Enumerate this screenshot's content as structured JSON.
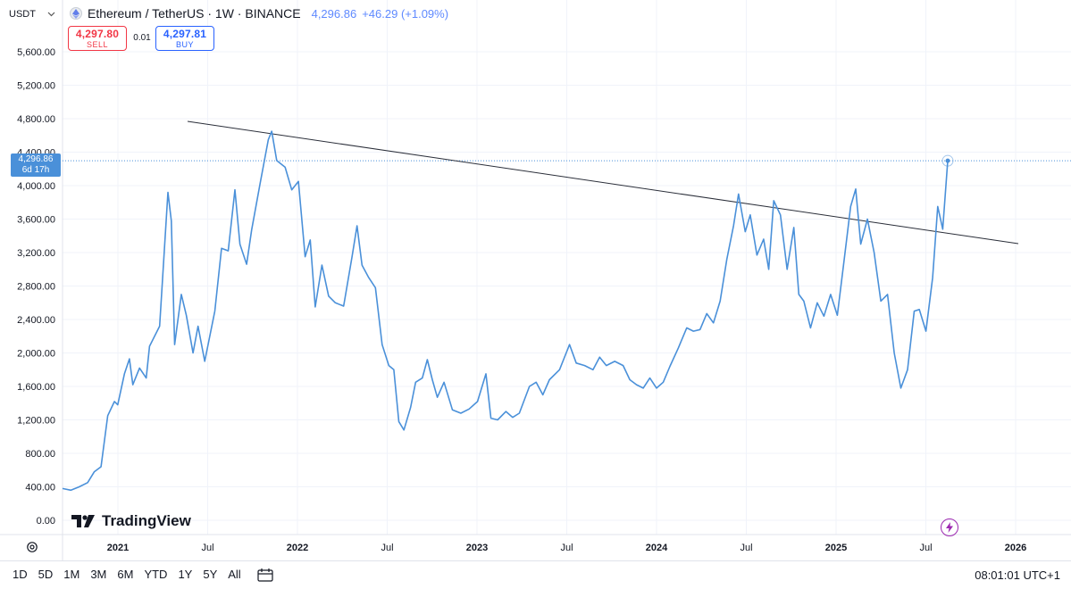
{
  "header": {
    "currency": "USDT",
    "title": "Ethereum / TetherUS · 1W · BINANCE",
    "price": "4,296.86",
    "change": "+46.29 (+1.09%)"
  },
  "trade": {
    "sell_price": "4,297.80",
    "sell_label": "SELL",
    "spread": "0.01",
    "buy_price": "4,297.81",
    "buy_label": "BUY"
  },
  "price_tag": {
    "price": "4,296.86",
    "countdown": "6d 17h"
  },
  "watermark": "TradingView",
  "toolbar": {
    "ranges": [
      "1D",
      "5D",
      "1M",
      "3M",
      "6M",
      "YTD",
      "1Y",
      "5Y",
      "All"
    ],
    "clock": "08:01:01 UTC+1"
  },
  "colors": {
    "line": "#4a90d9",
    "trendline": "#2a2e39",
    "grid": "#f0f3fa",
    "sell": "#f23645",
    "buy": "#2962ff",
    "event": "#9c27b0"
  },
  "icons": [
    "chevron-down-icon",
    "ethereum-logo-icon",
    "gear-icon",
    "date-range-icon",
    "lightning-icon",
    "tradingview-logo-icon"
  ],
  "chart_data": {
    "type": "line",
    "title": "Ethereum / TetherUS · 1W · BINANCE",
    "y_axis": {
      "position": "left",
      "ylim": [
        -100,
        6000
      ],
      "ticks": [
        0,
        400,
        800,
        1200,
        1600,
        2000,
        2400,
        2800,
        3200,
        3600,
        4000,
        4400,
        4800,
        5200,
        5600
      ],
      "tick_labels": [
        "0.00",
        "400.00",
        "800.00",
        "1,200.00",
        "1,600.00",
        "2,000.00",
        "2,400.00",
        "2,800.00",
        "3,200.00",
        "3,600.00",
        "4,000.00",
        "4,400.00",
        "4,800.00",
        "5,200.00",
        "5,600.00"
      ]
    },
    "x_axis": {
      "xlim": [
        2020.87,
        2026.08
      ],
      "ticks": [
        {
          "x": 2021.0,
          "label": "2021",
          "bold": true
        },
        {
          "x": 2021.5,
          "label": "Jul",
          "bold": false
        },
        {
          "x": 2022.0,
          "label": "2022",
          "bold": true
        },
        {
          "x": 2022.5,
          "label": "Jul",
          "bold": false
        },
        {
          "x": 2023.0,
          "label": "2023",
          "bold": true
        },
        {
          "x": 2023.5,
          "label": "Jul",
          "bold": false
        },
        {
          "x": 2024.0,
          "label": "2024",
          "bold": true
        },
        {
          "x": 2024.5,
          "label": "Jul",
          "bold": false
        },
        {
          "x": 2025.0,
          "label": "2025",
          "bold": true
        },
        {
          "x": 2025.5,
          "label": "Jul",
          "bold": false
        },
        {
          "x": 2026.0,
          "label": "2026",
          "bold": true
        }
      ]
    },
    "grid": true,
    "series": [
      {
        "points": [
          [
            2020.87,
            380
          ],
          [
            2020.92,
            360
          ],
          [
            2020.97,
            400
          ],
          [
            2021.02,
            450
          ],
          [
            2021.06,
            580
          ],
          [
            2021.1,
            640
          ],
          [
            2021.14,
            1250
          ],
          [
            2021.18,
            1420
          ],
          [
            2021.2,
            1380
          ],
          [
            2021.24,
            1750
          ],
          [
            2021.27,
            1930
          ],
          [
            2021.29,
            1620
          ],
          [
            2021.33,
            1820
          ],
          [
            2021.37,
            1700
          ],
          [
            2021.39,
            2080
          ],
          [
            2021.45,
            2320
          ],
          [
            2021.5,
            3920
          ],
          [
            2021.52,
            3580
          ],
          [
            2021.54,
            2100
          ],
          [
            2021.58,
            2700
          ],
          [
            2021.61,
            2450
          ],
          [
            2021.65,
            2000
          ],
          [
            2021.68,
            2320
          ],
          [
            2021.72,
            1900
          ],
          [
            2021.78,
            2500
          ],
          [
            2021.82,
            3250
          ],
          [
            2021.86,
            3220
          ],
          [
            2021.9,
            3950
          ],
          [
            2021.93,
            3300
          ],
          [
            2021.97,
            3060
          ],
          [
            2022.0,
            3470
          ],
          [
            2022.05,
            4020
          ],
          [
            2022.1,
            4550
          ],
          [
            2022.12,
            4650
          ],
          [
            2022.15,
            4300
          ],
          [
            2022.2,
            4220
          ],
          [
            2022.24,
            3950
          ],
          [
            2022.28,
            4050
          ],
          [
            2022.32,
            3150
          ],
          [
            2022.35,
            3350
          ],
          [
            2022.38,
            2550
          ],
          [
            2022.42,
            3050
          ],
          [
            2022.46,
            2680
          ],
          [
            2022.5,
            2600
          ],
          [
            2022.55,
            2560
          ],
          [
            2022.6,
            3150
          ],
          [
            2022.63,
            3520
          ],
          [
            2022.66,
            3050
          ],
          [
            2022.7,
            2900
          ],
          [
            2022.74,
            2780
          ],
          [
            2022.78,
            2100
          ],
          [
            2022.82,
            1850
          ],
          [
            2022.85,
            1800
          ],
          [
            2022.88,
            1180
          ],
          [
            2022.91,
            1080
          ],
          [
            2022.95,
            1350
          ],
          [
            2022.98,
            1650
          ],
          [
            2023.02,
            1700
          ],
          [
            2023.05,
            1920
          ],
          [
            2023.08,
            1680
          ],
          [
            2023.11,
            1470
          ],
          [
            2023.15,
            1650
          ],
          [
            2023.2,
            1320
          ],
          [
            2023.25,
            1280
          ],
          [
            2023.3,
            1330
          ],
          [
            2023.35,
            1420
          ],
          [
            2023.4,
            1750
          ],
          [
            2023.43,
            1220
          ],
          [
            2023.47,
            1200
          ],
          [
            2023.52,
            1300
          ],
          [
            2023.56,
            1230
          ],
          [
            2023.6,
            1280
          ],
          [
            2023.66,
            1600
          ],
          [
            2023.7,
            1650
          ],
          [
            2023.74,
            1500
          ],
          [
            2023.78,
            1680
          ],
          [
            2023.84,
            1800
          ],
          [
            2023.9,
            2100
          ],
          [
            2023.94,
            1880
          ],
          [
            2023.99,
            1850
          ],
          [
            2024.04,
            1800
          ],
          [
            2024.08,
            1950
          ],
          [
            2024.12,
            1850
          ],
          [
            2024.17,
            1900
          ],
          [
            2024.22,
            1850
          ],
          [
            2024.26,
            1680
          ],
          [
            2024.3,
            1620
          ],
          [
            2024.34,
            1580
          ],
          [
            2024.38,
            1700
          ],
          [
            2024.42,
            1580
          ],
          [
            2024.46,
            1650
          ],
          [
            2024.5,
            1840
          ],
          [
            2024.55,
            2060
          ],
          [
            2024.6,
            2300
          ],
          [
            2024.64,
            2260
          ],
          [
            2024.68,
            2280
          ],
          [
            2024.72,
            2470
          ],
          [
            2024.76,
            2360
          ],
          [
            2024.8,
            2620
          ],
          [
            2024.84,
            3120
          ],
          [
            2024.88,
            3520
          ],
          [
            2024.91,
            3900
          ],
          [
            2024.95,
            3450
          ],
          [
            2024.98,
            3650
          ],
          [
            2025.02,
            3170
          ],
          [
            2025.06,
            3360
          ],
          [
            2025.09,
            3000
          ],
          [
            2025.12,
            3820
          ],
          [
            2025.16,
            3650
          ],
          [
            2025.2,
            3000
          ],
          [
            2025.24,
            3500
          ],
          [
            2025.27,
            2700
          ],
          [
            2025.3,
            2620
          ],
          [
            2025.34,
            2300
          ],
          [
            2025.38,
            2600
          ],
          [
            2025.42,
            2440
          ],
          [
            2025.46,
            2700
          ],
          [
            2025.5,
            2450
          ],
          [
            2025.54,
            3100
          ],
          [
            2025.58,
            3750
          ],
          [
            2025.61,
            3960
          ],
          [
            2025.64,
            3300
          ],
          [
            2025.68,
            3600
          ],
          [
            2025.72,
            3200
          ],
          [
            2025.76,
            2620
          ],
          [
            2025.8,
            2700
          ],
          [
            2025.84,
            2000
          ],
          [
            2025.88,
            1580
          ],
          [
            2025.92,
            1800
          ],
          [
            2025.96,
            2500
          ],
          [
            2025.99,
            2520
          ],
          [
            2026.03,
            2260
          ],
          [
            2026.07,
            2900
          ],
          [
            2026.1,
            3750
          ],
          [
            2026.13,
            3480
          ],
          [
            2026.16,
            4296.86
          ]
        ]
      }
    ]
  }
}
